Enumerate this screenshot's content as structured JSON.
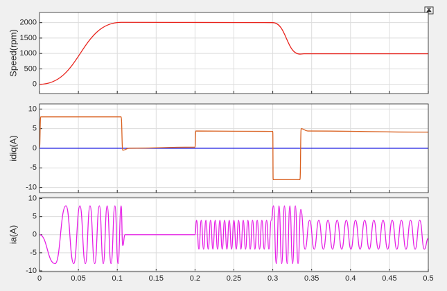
{
  "chart_data": [
    {
      "type": "line",
      "ylabel": "Speed(rpm)",
      "xlim": [
        0,
        0.5
      ],
      "xticks": [
        0,
        0.05,
        0.1,
        0.15,
        0.2,
        0.25,
        0.3,
        0.35,
        0.4,
        0.45,
        0.5
      ],
      "ylim": [
        -300,
        2330
      ],
      "yticks": [
        0,
        500,
        1000,
        1500,
        2000
      ],
      "grid": true,
      "series": [
        {
          "color": "#e8231c",
          "x": [
            0,
            0.105,
            0.3,
            0.335,
            0.34,
            0.5
          ],
          "values": [
            0,
            2010,
            2000,
            980,
            990,
            990
          ]
        }
      ]
    },
    {
      "type": "line",
      "ylabel": "idiq(A)",
      "xlim": [
        0,
        0.5
      ],
      "xticks": [
        0,
        0.05,
        0.1,
        0.15,
        0.2,
        0.25,
        0.3,
        0.35,
        0.4,
        0.45,
        0.5
      ],
      "ylim": [
        -11.3,
        11.3
      ],
      "yticks": [
        -10,
        -5,
        0,
        5,
        10
      ],
      "grid": true,
      "series": [
        {
          "color": "#1f1fe0",
          "x": [
            0,
            0.5
          ],
          "values": [
            0,
            0
          ]
        },
        {
          "color": "#d9601f",
          "x": [
            0,
            0.0015,
            0.105,
            0.107,
            0.115,
            0.2,
            0.201,
            0.3,
            0.3005,
            0.335,
            0.3365,
            0.345,
            0.5
          ],
          "values": [
            0,
            8,
            8,
            -0.5,
            0,
            0.3,
            4.4,
            4.3,
            -8,
            -8,
            5,
            4.4,
            4.1
          ]
        }
      ]
    },
    {
      "type": "line",
      "ylabel": "ia(A)",
      "xlim": [
        0,
        0.5
      ],
      "xticks": [
        0,
        0.05,
        0.1,
        0.15,
        0.2,
        0.25,
        0.3,
        0.35,
        0.4,
        0.45,
        0.5
      ],
      "ylim": [
        -10.2,
        10.3
      ],
      "yticks": [
        -10,
        -5,
        0,
        5,
        10
      ],
      "grid": true,
      "series": [
        {
          "color": "#e61ee6",
          "x": [
            0,
            0.02,
            0.034,
            0.044,
            0.052,
            0.059,
            0.065,
            0.071,
            0.077,
            0.082,
            0.087,
            0.092,
            0.097,
            0.101,
            0.105,
            0.107,
            0.11,
            0.2,
            0.202,
            0.205,
            0.208,
            0.211,
            0.214,
            0.217,
            0.22,
            0.223,
            0.226,
            0.229,
            0.232,
            0.235,
            0.238,
            0.241,
            0.244,
            0.247,
            0.25,
            0.253,
            0.256,
            0.259,
            0.262,
            0.265,
            0.268,
            0.271,
            0.274,
            0.277,
            0.28,
            0.283,
            0.286,
            0.289,
            0.292,
            0.295,
            0.298,
            0.301,
            0.3045,
            0.308,
            0.3115,
            0.315,
            0.3185,
            0.322,
            0.3255,
            0.329,
            0.3325,
            0.336,
            0.3415,
            0.3474,
            0.3533,
            0.3592,
            0.3651,
            0.371,
            0.3769,
            0.3828,
            0.3887,
            0.3946,
            0.4005,
            0.4064,
            0.4123,
            0.4182,
            0.4241,
            0.43,
            0.4359,
            0.4418,
            0.4477,
            0.4536,
            0.4595,
            0.4654,
            0.4713,
            0.4772,
            0.4831,
            0.489,
            0.4949,
            0.5
          ],
          "values": [
            0,
            -8,
            8,
            -8,
            8,
            -8,
            8,
            -8,
            8,
            -8,
            8,
            -8,
            8,
            -8,
            8,
            -3,
            0,
            0,
            4,
            -4,
            4,
            -4,
            4,
            -4,
            4,
            -4,
            4,
            -4,
            4,
            -4,
            4,
            -4,
            4,
            -4,
            4,
            -4,
            4,
            -4,
            4,
            -4,
            4,
            -4,
            4,
            -4,
            4,
            -4,
            4,
            -4,
            4,
            -4,
            4,
            8,
            -8,
            8,
            -8,
            8,
            -8,
            8,
            -8,
            8,
            -8,
            7,
            -4,
            4,
            -4,
            4,
            -4,
            4,
            -4,
            4,
            -4,
            4,
            -4,
            4,
            -4,
            4,
            -4,
            4,
            -4,
            4,
            -4,
            4,
            -4,
            4,
            -4,
            4,
            -4,
            4,
            -4,
            -1
          ]
        }
      ]
    }
  ]
}
